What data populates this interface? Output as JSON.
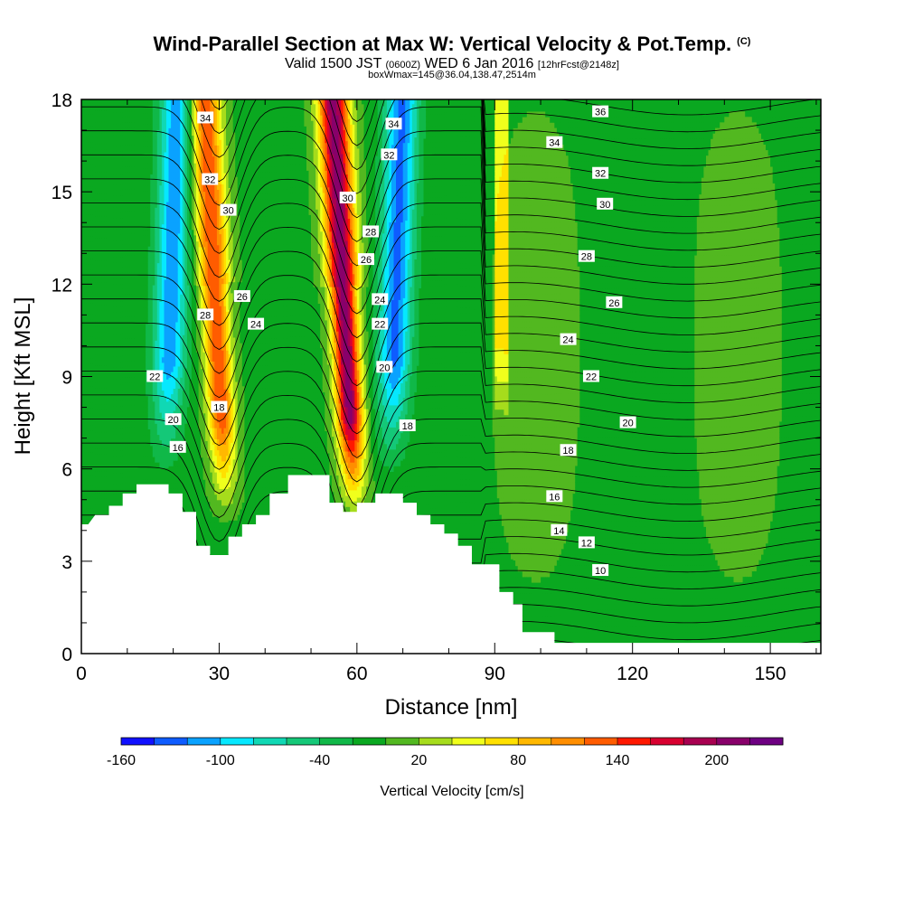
{
  "header": {
    "title": "Wind-Parallel Section at Max W: Vertical Velocity & Pot.Temp.",
    "title_mark": "(C)",
    "valid_prefix": "Valid 1500 JST",
    "valid_utc": "(0600Z)",
    "valid_date": "WED 6 Jan 2016",
    "fcst": "[12hrFcst@2148z]",
    "box_info": "boxWmax=145@36.04,138.47,2514m"
  },
  "chart_data": {
    "type": "heatmap",
    "xlabel": "Distance [nm]",
    "ylabel": "Height [Kft MSL]",
    "xlim": [
      0,
      161
    ],
    "ylim": [
      0,
      18
    ],
    "x_ticks": [
      "0",
      "30",
      "60",
      "90",
      "120",
      "150"
    ],
    "y_ticks": [
      "0",
      "3",
      "6",
      "9",
      "12",
      "15",
      "18"
    ],
    "terrain": [
      [
        0,
        4.2
      ],
      [
        1.5,
        4.2
      ],
      [
        3,
        4.5
      ],
      [
        6,
        4.5
      ],
      [
        6,
        4.8
      ],
      [
        9,
        4.8
      ],
      [
        9,
        5.2
      ],
      [
        12,
        5.2
      ],
      [
        12,
        5.5
      ],
      [
        19,
        5.5
      ],
      [
        19,
        5.2
      ],
      [
        22,
        5.2
      ],
      [
        22,
        4.6
      ],
      [
        25,
        4.6
      ],
      [
        25,
        3.5
      ],
      [
        28,
        3.5
      ],
      [
        28,
        3.2
      ],
      [
        32,
        3.2
      ],
      [
        32,
        3.8
      ],
      [
        35,
        3.8
      ],
      [
        35,
        4.2
      ],
      [
        38,
        4.2
      ],
      [
        38,
        4.5
      ],
      [
        41,
        4.5
      ],
      [
        41,
        5.2
      ],
      [
        45,
        5.2
      ],
      [
        45,
        5.8
      ],
      [
        54,
        5.8
      ],
      [
        54,
        4.9
      ],
      [
        57,
        4.9
      ],
      [
        57,
        4.6
      ],
      [
        60,
        4.6
      ],
      [
        60,
        4.9
      ],
      [
        64,
        4.9
      ],
      [
        64,
        5.2
      ],
      [
        70,
        5.2
      ],
      [
        70,
        4.9
      ],
      [
        73,
        4.9
      ],
      [
        73,
        4.5
      ],
      [
        76,
        4.5
      ],
      [
        76,
        4.2
      ],
      [
        79,
        4.2
      ],
      [
        79,
        3.9
      ],
      [
        82,
        3.9
      ],
      [
        82,
        3.5
      ],
      [
        85,
        3.5
      ],
      [
        85,
        2.9
      ],
      [
        91,
        2.9
      ],
      [
        91,
        2.0
      ],
      [
        94,
        2.0
      ],
      [
        94,
        1.6
      ],
      [
        96,
        1.6
      ],
      [
        96,
        0.7
      ],
      [
        103,
        0.7
      ],
      [
        103,
        0.35
      ],
      [
        161,
        0.35
      ]
    ],
    "updrafts": [
      {
        "x": 30,
        "w_max": 145
      },
      {
        "x": 58,
        "w_max": 215
      }
    ],
    "downdrafts": [
      {
        "x": 19,
        "w_min": -110
      },
      {
        "x": 68,
        "w_min": -120
      }
    ],
    "theta_contours": [
      {
        "value": "10",
        "x": 113,
        "y": 2.7
      },
      {
        "value": "12",
        "x": 110,
        "y": 3.6
      },
      {
        "value": "14",
        "x": 104,
        "y": 4.0
      },
      {
        "value": "16",
        "x": 103,
        "y": 5.1
      },
      {
        "value": "16",
        "x": 21,
        "y": 6.7
      },
      {
        "value": "18",
        "x": 106,
        "y": 6.6
      },
      {
        "value": "18",
        "x": 71,
        "y": 7.4
      },
      {
        "value": "18",
        "x": 30,
        "y": 8.0
      },
      {
        "value": "20",
        "x": 119,
        "y": 7.5
      },
      {
        "value": "20",
        "x": 20,
        "y": 7.6
      },
      {
        "value": "20",
        "x": 66,
        "y": 9.3
      },
      {
        "value": "22",
        "x": 111,
        "y": 9.0
      },
      {
        "value": "22",
        "x": 16,
        "y": 9.0
      },
      {
        "value": "22",
        "x": 65,
        "y": 10.7
      },
      {
        "value": "24",
        "x": 106,
        "y": 10.2
      },
      {
        "value": "24",
        "x": 38,
        "y": 10.7
      },
      {
        "value": "24",
        "x": 65,
        "y": 11.5
      },
      {
        "value": "26",
        "x": 116,
        "y": 11.4
      },
      {
        "value": "26",
        "x": 35,
        "y": 11.6
      },
      {
        "value": "26",
        "x": 62,
        "y": 12.8
      },
      {
        "value": "28",
        "x": 110,
        "y": 12.9
      },
      {
        "value": "28",
        "x": 27,
        "y": 11.0
      },
      {
        "value": "28",
        "x": 63,
        "y": 13.7
      },
      {
        "value": "30",
        "x": 114,
        "y": 14.6
      },
      {
        "value": "30",
        "x": 32,
        "y": 14.4
      },
      {
        "value": "30",
        "x": 58,
        "y": 14.8
      },
      {
        "value": "32",
        "x": 113,
        "y": 15.6
      },
      {
        "value": "32",
        "x": 28,
        "y": 15.4
      },
      {
        "value": "32",
        "x": 67,
        "y": 16.2
      },
      {
        "value": "34",
        "x": 103,
        "y": 16.6
      },
      {
        "value": "34",
        "x": 27,
        "y": 17.4
      },
      {
        "value": "34",
        "x": 68,
        "y": 17.2
      },
      {
        "value": "36",
        "x": 113,
        "y": 17.6
      }
    ],
    "colorbar": {
      "label": "Vertical Velocity [cm/s]",
      "tick_labels": [
        "-160",
        "-100",
        "-40",
        "20",
        "80",
        "140",
        "200"
      ],
      "colors": [
        "#1010ff",
        "#0e5cff",
        "#0aa2ff",
        "#06e8ff",
        "#10d8b4",
        "#14c878",
        "#10b848",
        "#0aa820",
        "#52b820",
        "#a6dc1c",
        "#f0ff1c",
        "#ffe000",
        "#ffb800",
        "#ff8e00",
        "#ff5c00",
        "#ff1800",
        "#d80030",
        "#a80050",
        "#88006a",
        "#6e0082"
      ]
    }
  }
}
